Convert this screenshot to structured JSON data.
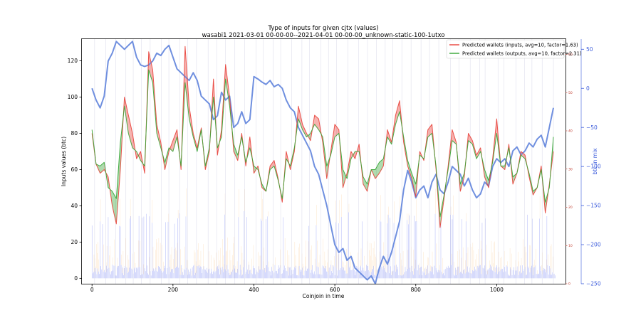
{
  "chart_data": {
    "type": "line",
    "title": "Type of inputs for given cjtx (values)",
    "subtitle": "wasabi1 2021-03-01 00-00-00--2021-04-01 00-00-00_unknown-static-100-1utxo",
    "xlabel": "Coinjoin in time",
    "ylabel": "Inputs values (btc)",
    "y2label": "btc in mix",
    "xlim": [
      -25,
      1170
    ],
    "ylim": [
      -3,
      132
    ],
    "y2lim": [
      -250,
      63
    ],
    "y3lim": [
      0,
      64
    ],
    "x_ticks": [
      0,
      200,
      400,
      600,
      800,
      1000
    ],
    "y_ticks": [
      0,
      20,
      40,
      60,
      80,
      100,
      120
    ],
    "y2_ticks": [
      50,
      0,
      -50,
      -100,
      -150,
      -200,
      -250
    ],
    "y2_tick_labels": [
      "50",
      "0",
      "−50",
      "−100",
      "−150",
      "−200",
      "−250"
    ],
    "y3_ticks": [
      0,
      10,
      20,
      30,
      40,
      50,
      60
    ],
    "grid": false,
    "legend_position": "top-right",
    "colors": {
      "inputs": "#e8413a",
      "outputs": "#34a534",
      "btc_in_mix": "#6f8fdf",
      "bars_blue": "#4a5ef0",
      "bars_orange": "#f4a340",
      "vlines": "#d8d8e8"
    },
    "series": [
      {
        "name": "Predicted wallets (inputs, avg=10, factor=1.63)",
        "axis": "left",
        "x": [
          0,
          10,
          20,
          30,
          40,
          50,
          60,
          70,
          80,
          90,
          100,
          110,
          120,
          130,
          140,
          150,
          160,
          170,
          180,
          190,
          200,
          210,
          220,
          230,
          240,
          250,
          260,
          270,
          280,
          290,
          300,
          310,
          320,
          330,
          340,
          350,
          360,
          370,
          380,
          390,
          400,
          410,
          420,
          430,
          440,
          450,
          460,
          470,
          480,
          490,
          500,
          510,
          520,
          530,
          540,
          550,
          560,
          570,
          580,
          590,
          600,
          610,
          620,
          630,
          640,
          650,
          660,
          670,
          680,
          690,
          700,
          710,
          720,
          730,
          740,
          750,
          760,
          770,
          780,
          790,
          800,
          810,
          820,
          830,
          840,
          850,
          860,
          870,
          880,
          890,
          900,
          910,
          920,
          930,
          940,
          950,
          960,
          970,
          980,
          990,
          1000,
          1010,
          1020,
          1030,
          1040,
          1050,
          1060,
          1070,
          1080,
          1090,
          1100,
          1110,
          1120,
          1130,
          1140
        ],
        "values": [
          80,
          63,
          58,
          60,
          56,
          40,
          30,
          60,
          100,
          90,
          80,
          66,
          70,
          58,
          125,
          115,
          85,
          75,
          60,
          70,
          76,
          82,
          60,
          128,
          95,
          80,
          72,
          83,
          60,
          70,
          110,
          68,
          82,
          118,
          100,
          70,
          65,
          80,
          62,
          78,
          58,
          62,
          50,
          48,
          62,
          65,
          55,
          42,
          70,
          60,
          70,
          95,
          85,
          80,
          76,
          90,
          88,
          75,
          55,
          70,
          85,
          82,
          50,
          58,
          70,
          66,
          74,
          52,
          48,
          60,
          55,
          58,
          62,
          82,
          75,
          90,
          98,
          75,
          62,
          55,
          45,
          70,
          65,
          82,
          85,
          60,
          28,
          44,
          62,
          82,
          75,
          48,
          56,
          80,
          76,
          68,
          72,
          56,
          50,
          66,
          88,
          62,
          60,
          74,
          52,
          58,
          70,
          68,
          56,
          46,
          50,
          62,
          36,
          52,
          70
        ]
      },
      {
        "name": "Predicted wallets (outputs, avg=10, factor=2.31)",
        "axis": "left",
        "x": [
          0,
          10,
          20,
          30,
          40,
          50,
          60,
          70,
          80,
          90,
          100,
          110,
          120,
          130,
          140,
          150,
          160,
          170,
          180,
          190,
          200,
          210,
          220,
          230,
          240,
          250,
          260,
          270,
          280,
          290,
          300,
          310,
          320,
          330,
          340,
          350,
          360,
          370,
          380,
          390,
          400,
          410,
          420,
          430,
          440,
          450,
          460,
          470,
          480,
          490,
          500,
          510,
          520,
          530,
          540,
          550,
          560,
          570,
          580,
          590,
          600,
          610,
          620,
          630,
          640,
          650,
          660,
          670,
          680,
          690,
          700,
          710,
          720,
          730,
          740,
          750,
          760,
          770,
          780,
          790,
          800,
          810,
          820,
          830,
          840,
          850,
          860,
          870,
          880,
          890,
          900,
          910,
          920,
          930,
          940,
          950,
          960,
          970,
          980,
          990,
          1000,
          1010,
          1020,
          1030,
          1040,
          1050,
          1060,
          1070,
          1080,
          1090,
          1100,
          1110,
          1120,
          1130,
          1140
        ],
        "values": [
          82,
          63,
          62,
          64,
          50,
          48,
          44,
          75,
          95,
          80,
          72,
          70,
          65,
          62,
          115,
          108,
          80,
          72,
          64,
          72,
          70,
          78,
          62,
          108,
          88,
          78,
          70,
          82,
          62,
          72,
          100,
          72,
          78,
          110,
          95,
          74,
          68,
          78,
          64,
          72,
          62,
          60,
          52,
          48,
          60,
          62,
          54,
          44,
          66,
          62,
          72,
          88,
          82,
          78,
          80,
          85,
          82,
          78,
          62,
          68,
          78,
          80,
          60,
          55,
          66,
          70,
          70,
          56,
          52,
          60,
          60,
          64,
          66,
          78,
          74,
          85,
          92,
          78,
          65,
          58,
          52,
          68,
          66,
          78,
          80,
          62,
          34,
          46,
          60,
          76,
          74,
          52,
          58,
          76,
          74,
          66,
          70,
          60,
          54,
          64,
          80,
          62,
          62,
          72,
          56,
          58,
          68,
          66,
          58,
          48,
          50,
          60,
          42,
          50,
          78
        ]
      },
      {
        "name": "btc in mix",
        "axis": "right",
        "x": [
          0,
          10,
          20,
          30,
          40,
          50,
          60,
          70,
          80,
          90,
          100,
          110,
          120,
          130,
          140,
          150,
          160,
          170,
          180,
          190,
          200,
          210,
          220,
          230,
          240,
          250,
          260,
          270,
          280,
          290,
          300,
          310,
          320,
          330,
          340,
          350,
          360,
          370,
          380,
          390,
          400,
          410,
          420,
          430,
          440,
          450,
          460,
          470,
          480,
          490,
          500,
          510,
          520,
          530,
          540,
          550,
          560,
          570,
          580,
          590,
          600,
          610,
          620,
          630,
          640,
          650,
          660,
          670,
          680,
          690,
          700,
          710,
          720,
          730,
          740,
          750,
          760,
          770,
          780,
          790,
          800,
          810,
          820,
          830,
          840,
          850,
          860,
          870,
          880,
          890,
          900,
          910,
          920,
          930,
          940,
          950,
          960,
          970,
          980,
          990,
          1000,
          1010,
          1020,
          1030,
          1040,
          1050,
          1060,
          1070,
          1080,
          1090,
          1100,
          1110,
          1120,
          1130,
          1140
        ],
        "values": [
          0,
          -15,
          -25,
          -10,
          35,
          45,
          60,
          55,
          50,
          55,
          60,
          40,
          30,
          28,
          30,
          35,
          45,
          42,
          50,
          55,
          40,
          25,
          20,
          15,
          10,
          20,
          10,
          -10,
          -15,
          -20,
          -40,
          -35,
          -5,
          -15,
          -10,
          -50,
          -45,
          -30,
          -45,
          -40,
          15,
          12,
          8,
          5,
          10,
          2,
          5,
          0,
          -15,
          -25,
          -30,
          -50,
          -60,
          -70,
          -80,
          -100,
          -110,
          -130,
          -150,
          -175,
          -200,
          -210,
          -205,
          -220,
          -215,
          -230,
          -235,
          -240,
          -245,
          -240,
          -250,
          -230,
          -215,
          -225,
          -210,
          -190,
          -170,
          -130,
          -105,
          -120,
          -140,
          -130,
          -125,
          -140,
          -120,
          -110,
          -130,
          -135,
          -120,
          -100,
          -105,
          -110,
          -125,
          -115,
          -130,
          -140,
          -135,
          -120,
          -125,
          -100,
          -90,
          -95,
          -90,
          -100,
          -80,
          -75,
          -85,
          -80,
          -70,
          -75,
          -65,
          -60,
          -75,
          -50,
          -25
        ]
      }
    ]
  }
}
